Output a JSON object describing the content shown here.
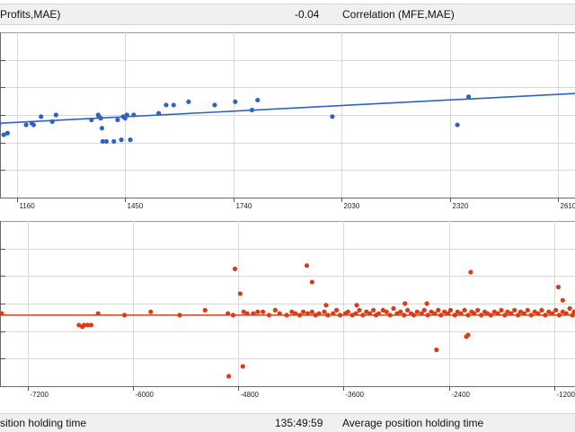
{
  "top_bar": {
    "left_label": "Profits,MAE)",
    "value": "-0.04",
    "right_label": "Correlation (MFE,MAE)"
  },
  "bottom_bar": {
    "left_label": "sition holding time",
    "value": "135:49:59",
    "right_label": "Average position holding time"
  },
  "chart_data": [
    {
      "type": "scatter",
      "title": "",
      "xlabel": "",
      "ylabel": "",
      "xlim": [
        1115,
        2655
      ],
      "ylim": [
        0,
        1
      ],
      "x_ticks": [
        "1160",
        "1450",
        "1740",
        "2030",
        "2320",
        "2610"
      ],
      "grid": true,
      "color": "#2f62c8",
      "trendline": {
        "x": [
          1115,
          2655
        ],
        "y": [
          0.45,
          0.63
        ]
      },
      "points": [
        [
          1112,
          0.44
        ],
        [
          1125,
          0.38
        ],
        [
          1135,
          0.39
        ],
        [
          1185,
          0.44
        ],
        [
          1200,
          0.45
        ],
        [
          1205,
          0.44
        ],
        [
          1225,
          0.49
        ],
        [
          1255,
          0.46
        ],
        [
          1265,
          0.5
        ],
        [
          1360,
          0.47
        ],
        [
          1378,
          0.5
        ],
        [
          1380,
          0.49
        ],
        [
          1385,
          0.48
        ],
        [
          1388,
          0.42
        ],
        [
          1390,
          0.34
        ],
        [
          1400,
          0.34
        ],
        [
          1420,
          0.34
        ],
        [
          1430,
          0.47
        ],
        [
          1440,
          0.35
        ],
        [
          1464,
          0.35
        ],
        [
          1445,
          0.49
        ],
        [
          1450,
          0.48
        ],
        [
          1455,
          0.5
        ],
        [
          1473,
          0.5
        ],
        [
          1540,
          0.51
        ],
        [
          1560,
          0.56
        ],
        [
          1580,
          0.56
        ],
        [
          1620,
          0.58
        ],
        [
          1690,
          0.56
        ],
        [
          1745,
          0.58
        ],
        [
          1790,
          0.53
        ],
        [
          1805,
          0.59
        ],
        [
          2005,
          0.49
        ],
        [
          2340,
          0.44
        ],
        [
          2370,
          0.61
        ]
      ]
    },
    {
      "type": "scatter",
      "title": "",
      "xlabel": "",
      "ylabel": "",
      "xlim": [
        -7520,
        -960
      ],
      "ylim": [
        0,
        1
      ],
      "x_ticks": [
        "-7200",
        "-6000",
        "-4800",
        "-3600",
        "-2400",
        "-1200"
      ],
      "grid": true,
      "color": "#dd3b14",
      "trendline": {
        "x": [
          -7520,
          -960
        ],
        "y": [
          0.43,
          0.43
        ]
      },
      "points": [
        [
          -7500,
          0.44
        ],
        [
          -6620,
          0.37
        ],
        [
          -6580,
          0.36
        ],
        [
          -6560,
          0.37
        ],
        [
          -6520,
          0.37
        ],
        [
          -6480,
          0.37
        ],
        [
          -6400,
          0.44
        ],
        [
          -6100,
          0.43
        ],
        [
          -5800,
          0.45
        ],
        [
          -5470,
          0.43
        ],
        [
          -5180,
          0.46
        ],
        [
          -4920,
          0.44
        ],
        [
          -4860,
          0.43
        ],
        [
          -4780,
          0.56
        ],
        [
          -4740,
          0.45
        ],
        [
          -4700,
          0.44
        ],
        [
          -4630,
          0.44
        ],
        [
          -4580,
          0.45
        ],
        [
          -4520,
          0.45
        ],
        [
          -4450,
          0.43
        ],
        [
          -4380,
          0.46
        ],
        [
          -4330,
          0.44
        ],
        [
          -4250,
          0.43
        ],
        [
          -4190,
          0.45
        ],
        [
          -4150,
          0.44
        ],
        [
          -4100,
          0.43
        ],
        [
          -4060,
          0.45
        ],
        [
          -4010,
          0.44
        ],
        [
          -3960,
          0.45
        ],
        [
          -3920,
          0.43
        ],
        [
          -3880,
          0.44
        ],
        [
          -3820,
          0.45
        ],
        [
          -3780,
          0.43
        ],
        [
          -3720,
          0.44
        ],
        [
          -3680,
          0.46
        ],
        [
          -3640,
          0.43
        ],
        [
          -3580,
          0.44
        ],
        [
          -3550,
          0.45
        ],
        [
          -3500,
          0.43
        ],
        [
          -3460,
          0.44
        ],
        [
          -3420,
          0.46
        ],
        [
          -3380,
          0.43
        ],
        [
          -3340,
          0.45
        ],
        [
          -3300,
          0.44
        ],
        [
          -3260,
          0.46
        ],
        [
          -3230,
          0.43
        ],
        [
          -3200,
          0.44
        ],
        [
          -3150,
          0.46
        ],
        [
          -3110,
          0.45
        ],
        [
          -3070,
          0.43
        ],
        [
          -3030,
          0.47
        ],
        [
          -2990,
          0.44
        ],
        [
          -2950,
          0.45
        ],
        [
          -2910,
          0.43
        ],
        [
          -2870,
          0.46
        ],
        [
          -2830,
          0.44
        ],
        [
          -2800,
          0.43
        ],
        [
          -2760,
          0.45
        ],
        [
          -2710,
          0.44
        ],
        [
          -2680,
          0.46
        ],
        [
          -2640,
          0.43
        ],
        [
          -2600,
          0.45
        ],
        [
          -2560,
          0.44
        ],
        [
          -2520,
          0.46
        ],
        [
          -2490,
          0.43
        ],
        [
          -2450,
          0.45
        ],
        [
          -2410,
          0.44
        ],
        [
          -2380,
          0.46
        ],
        [
          -2330,
          0.43
        ],
        [
          -2300,
          0.45
        ],
        [
          -2260,
          0.44
        ],
        [
          -2220,
          0.46
        ],
        [
          -2180,
          0.43
        ],
        [
          -2140,
          0.45
        ],
        [
          -2110,
          0.44
        ],
        [
          -2070,
          0.46
        ],
        [
          -2030,
          0.43
        ],
        [
          -1990,
          0.45
        ],
        [
          -1960,
          0.44
        ],
        [
          -1920,
          0.43
        ],
        [
          -1880,
          0.45
        ],
        [
          -1840,
          0.44
        ],
        [
          -1800,
          0.46
        ],
        [
          -1760,
          0.43
        ],
        [
          -1730,
          0.45
        ],
        [
          -1690,
          0.44
        ],
        [
          -1650,
          0.46
        ],
        [
          -1610,
          0.43
        ],
        [
          -1580,
          0.45
        ],
        [
          -1540,
          0.44
        ],
        [
          -1500,
          0.46
        ],
        [
          -1460,
          0.43
        ],
        [
          -1420,
          0.45
        ],
        [
          -1380,
          0.44
        ],
        [
          -1340,
          0.46
        ],
        [
          -1300,
          0.43
        ],
        [
          -1260,
          0.45
        ],
        [
          -1220,
          0.44
        ],
        [
          -1180,
          0.46
        ],
        [
          -1140,
          0.43
        ],
        [
          -1100,
          0.45
        ],
        [
          -1060,
          0.44
        ],
        [
          -1020,
          0.47
        ],
        [
          -990,
          0.43
        ],
        [
          -970,
          0.45
        ],
        [
          -4840,
          0.71
        ],
        [
          -4020,
          0.73
        ],
        [
          -3960,
          0.63
        ],
        [
          -2150,
          0.69
        ],
        [
          -2540,
          0.22
        ],
        [
          -2180,
          0.31
        ],
        [
          -2200,
          0.3
        ],
        [
          -1150,
          0.6
        ],
        [
          -1100,
          0.52
        ],
        [
          -4910,
          0.06
        ],
        [
          -4750,
          0.12
        ],
        [
          -2900,
          0.5
        ],
        [
          -2650,
          0.5
        ],
        [
          -3800,
          0.49
        ],
        [
          -3450,
          0.49
        ]
      ]
    }
  ]
}
